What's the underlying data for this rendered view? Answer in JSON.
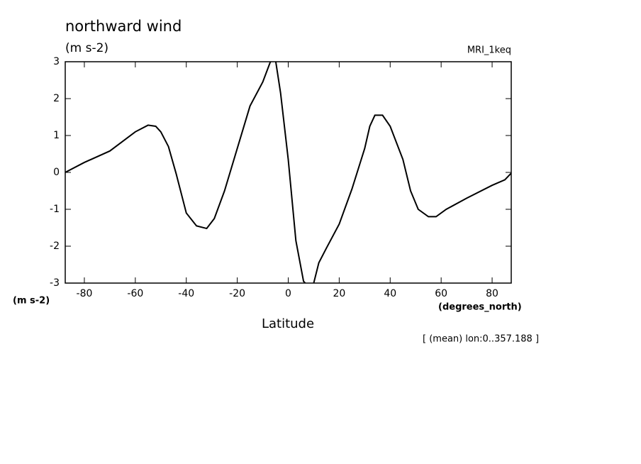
{
  "chart_data": {
    "type": "line",
    "title": "northward wind",
    "subtitle": "(m s-2)",
    "annotation": "MRI_1keq",
    "y_unit_label": "(m s-2)",
    "x_unit_label": "(degrees_north)",
    "xlabel": "Latitude",
    "footnote": "[ (mean) lon:0..357.188 ]",
    "x": [
      -87.5,
      -80,
      -70,
      -60,
      -55,
      -52,
      -50,
      -47,
      -44,
      -40,
      -36,
      -32,
      -29,
      -25,
      -20,
      -15,
      -10,
      -7,
      -5,
      -3,
      0,
      3,
      6,
      8,
      10,
      12,
      15,
      20,
      25,
      30,
      32,
      34,
      37,
      40,
      45,
      48,
      51,
      55,
      58,
      62,
      70,
      80,
      85,
      87.5
    ],
    "series": [
      {
        "name": "northward wind",
        "color": "#000000",
        "values": [
          0,
          0.27,
          0.58,
          1.1,
          1.28,
          1.25,
          1.1,
          0.7,
          -0.03,
          -1.1,
          -1.45,
          -1.52,
          -1.25,
          -0.5,
          0.65,
          1.8,
          2.45,
          3.0,
          3.05,
          2.15,
          0.35,
          -1.85,
          -2.95,
          -3.1,
          -3.0,
          -2.45,
          -2.05,
          -1.4,
          -0.45,
          0.65,
          1.25,
          1.55,
          1.55,
          1.25,
          0.35,
          -0.5,
          -1.0,
          -1.2,
          -1.2,
          -1.0,
          -0.7,
          -0.35,
          -0.2,
          -0.02
        ]
      }
    ],
    "xlim": [
      -87.5,
      87.5
    ],
    "xticks": [
      -80,
      -60,
      -40,
      -20,
      0,
      20,
      40,
      60,
      80
    ],
    "ylim": [
      -3,
      3
    ],
    "yticks": [
      -3,
      -2,
      -1,
      0,
      1,
      2,
      3
    ],
    "grid": false
  }
}
